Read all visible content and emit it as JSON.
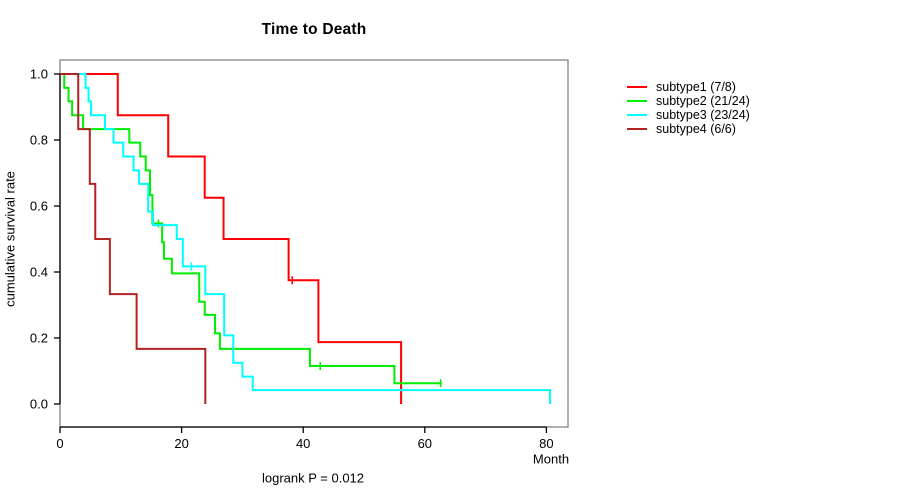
{
  "chart_data": {
    "type": "line",
    "variant": "kaplan-meier-step-curves",
    "title": "Time to Death",
    "xlabel": "Month",
    "ylabel": "cumulative survival rate",
    "footnote": "logrank P = 0.012",
    "xlim": [
      0,
      83.5
    ],
    "ylim": [
      0,
      1
    ],
    "xticks": [
      "0",
      "20",
      "40",
      "60",
      "80"
    ],
    "yticks": [
      "0.0",
      "0.2",
      "0.4",
      "0.6",
      "0.8",
      "1.0"
    ],
    "grid": false,
    "legend_position": "right",
    "frame_color": "#848484",
    "axis_color": "#000000",
    "series": [
      {
        "label": "subtype1 (7/8)",
        "color": "#ff0000",
        "steps": [
          [
            0,
            1.0
          ],
          [
            9.5,
            0.875
          ],
          [
            17.8,
            0.75
          ],
          [
            23.8,
            0.625
          ],
          [
            26.9,
            0.5
          ],
          [
            37.6,
            0.375
          ],
          [
            42.5,
            0.1875
          ],
          [
            56.1,
            0
          ]
        ],
        "censor_marks": [
          [
            38.2,
            0.375
          ]
        ],
        "end_month": 56.1
      },
      {
        "label": "subtype2 (21/24)",
        "color": "#00ee00",
        "steps": [
          [
            0,
            1.0
          ],
          [
            0.7,
            0.958
          ],
          [
            1.4,
            0.917
          ],
          [
            2.0,
            0.875
          ],
          [
            3.8,
            0.833
          ],
          [
            11.4,
            0.792
          ],
          [
            13.2,
            0.75
          ],
          [
            14.1,
            0.708
          ],
          [
            14.8,
            0.633
          ],
          [
            15.2,
            0.547
          ],
          [
            16.8,
            0.49
          ],
          [
            17.1,
            0.44
          ],
          [
            18.4,
            0.396
          ],
          [
            22.9,
            0.31
          ],
          [
            23.8,
            0.27
          ],
          [
            25.5,
            0.214
          ],
          [
            26.3,
            0.167
          ],
          [
            41.1,
            0.115
          ],
          [
            55.0,
            0.063
          ]
        ],
        "censor_marks": [
          [
            16.2,
            0.547
          ],
          [
            42.8,
            0.115
          ],
          [
            62.6,
            0.063
          ]
        ],
        "end_month": 62.8
      },
      {
        "label": "subtype3 (23/24)",
        "color": "#00ffff",
        "steps": [
          [
            0,
            1.0
          ],
          [
            4.2,
            0.958
          ],
          [
            4.7,
            0.917
          ],
          [
            5.1,
            0.875
          ],
          [
            7.4,
            0.833
          ],
          [
            8.8,
            0.792
          ],
          [
            10.4,
            0.75
          ],
          [
            12.1,
            0.708
          ],
          [
            13.0,
            0.667
          ],
          [
            14.5,
            0.583
          ],
          [
            15.3,
            0.542
          ],
          [
            19.2,
            0.5
          ],
          [
            20.2,
            0.417
          ],
          [
            23.9,
            0.333
          ],
          [
            27.0,
            0.208
          ],
          [
            28.5,
            0.125
          ],
          [
            30.0,
            0.083
          ],
          [
            31.7,
            0.042
          ],
          [
            80.6,
            0
          ]
        ],
        "censor_marks": [
          [
            21.6,
            0.417
          ]
        ],
        "end_month": 80.6
      },
      {
        "label": "subtype4 (6/6)",
        "color": "#b22222",
        "steps": [
          [
            0,
            1.0
          ],
          [
            3.0,
            0.833
          ],
          [
            4.9,
            0.667
          ],
          [
            5.8,
            0.5
          ],
          [
            8.2,
            0.333
          ],
          [
            12.6,
            0.167
          ],
          [
            23.9,
            0
          ]
        ],
        "censor_marks": [],
        "end_month": 23.9
      }
    ]
  }
}
